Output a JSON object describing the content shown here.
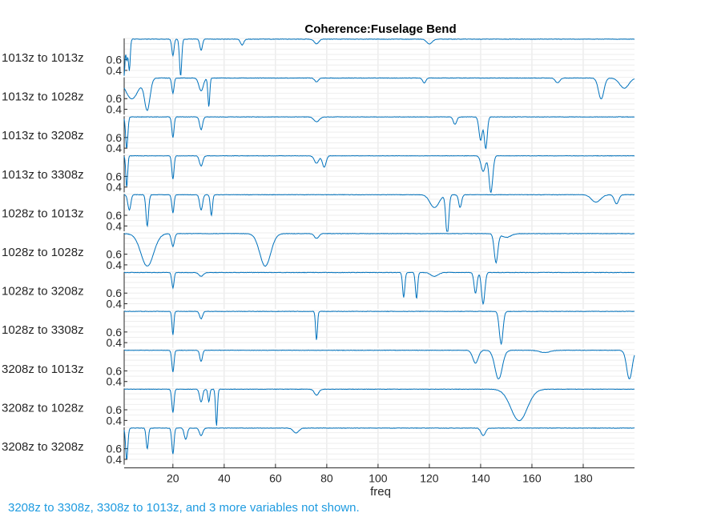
{
  "chart_data": {
    "type": "line",
    "title": "Coherence:Fuselage Bend",
    "xlabel": "freq",
    "xlim": [
      1,
      200
    ],
    "xticks": [
      20,
      40,
      60,
      80,
      100,
      120,
      140,
      160,
      180
    ],
    "ylim": [
      0.3,
      1.0
    ],
    "yticks": [
      0.4,
      0.6
    ],
    "grid": true,
    "series_color": "#0072BD",
    "baseline": 0.99,
    "panels": [
      {
        "name": "1013z to 1013z",
        "dips": [
          [
            1,
            0.3,
            0.4
          ],
          [
            2,
            0.6,
            0.5
          ],
          [
            3,
            0.4,
            0.5
          ],
          [
            20,
            0.68,
            0.6
          ],
          [
            23,
            0.3,
            0.6
          ],
          [
            31,
            0.78,
            0.7
          ],
          [
            47,
            0.88,
            0.9
          ],
          [
            76,
            0.9,
            1.2
          ],
          [
            120,
            0.9,
            1.5
          ]
        ]
      },
      {
        "name": "1013z to 1028z",
        "dips": [
          [
            4,
            0.6,
            3.5
          ],
          [
            10,
            0.4,
            1.5
          ],
          [
            20,
            0.7,
            0.6
          ],
          [
            31,
            0.75,
            1.2
          ],
          [
            34,
            0.45,
            0.5
          ],
          [
            76,
            0.92,
            1.0
          ],
          [
            118,
            0.9,
            0.9
          ],
          [
            170,
            0.9,
            1.2
          ],
          [
            187,
            0.6,
            1.5
          ],
          [
            196,
            0.8,
            2.5
          ]
        ]
      },
      {
        "name": "1013z to 3208z",
        "dips": [
          [
            2,
            0.4,
            0.6
          ],
          [
            20,
            0.6,
            0.6
          ],
          [
            31,
            0.75,
            0.8
          ],
          [
            76,
            0.9,
            1.5
          ],
          [
            130,
            0.85,
            0.9
          ],
          [
            140,
            0.55,
            0.9
          ],
          [
            142,
            0.4,
            0.8
          ]
        ]
      },
      {
        "name": "1013z to 3308z",
        "dips": [
          [
            2,
            0.4,
            0.5
          ],
          [
            20,
            0.55,
            0.6
          ],
          [
            31,
            0.8,
            0.9
          ],
          [
            76,
            0.85,
            1.2
          ],
          [
            79,
            0.78,
            1.0
          ],
          [
            141,
            0.7,
            1.2
          ],
          [
            144,
            0.3,
            1.0
          ]
        ]
      },
      {
        "name": "1028z to 1013z",
        "dips": [
          [
            3,
            0.7,
            0.8
          ],
          [
            10,
            0.4,
            0.7
          ],
          [
            20,
            0.65,
            0.6
          ],
          [
            31,
            0.7,
            0.8
          ],
          [
            35,
            0.6,
            0.6
          ],
          [
            122,
            0.75,
            2.5
          ],
          [
            127,
            0.2,
            0.8
          ],
          [
            132,
            0.75,
            0.8
          ],
          [
            185,
            0.85,
            2.5
          ],
          [
            193,
            0.82,
            1.2
          ]
        ]
      },
      {
        "name": "1028z to 1028z",
        "dips": [
          [
            10,
            0.38,
            3.5
          ],
          [
            20,
            0.75,
            0.8
          ],
          [
            56,
            0.38,
            3.0
          ],
          [
            76,
            0.9,
            1.2
          ],
          [
            146,
            0.45,
            1.0
          ],
          [
            150,
            0.92,
            2.5
          ]
        ]
      },
      {
        "name": "1028z to 3208z",
        "dips": [
          [
            20,
            0.7,
            0.6
          ],
          [
            31,
            0.92,
            1.2
          ],
          [
            110,
            0.52,
            0.6
          ],
          [
            115,
            0.5,
            0.6
          ],
          [
            122,
            0.92,
            2.0
          ],
          [
            138,
            0.6,
            0.8
          ],
          [
            141,
            0.4,
            0.9
          ]
        ]
      },
      {
        "name": "1028z to 3308z",
        "dips": [
          [
            20,
            0.55,
            0.5
          ],
          [
            31,
            0.85,
            0.8
          ],
          [
            76,
            0.45,
            0.5
          ],
          [
            148,
            0.38,
            1.0
          ]
        ]
      },
      {
        "name": "3208z to 1013z",
        "dips": [
          [
            20,
            0.58,
            0.6
          ],
          [
            31,
            0.78,
            0.7
          ],
          [
            138,
            0.75,
            1.5
          ],
          [
            147,
            0.45,
            2.0
          ],
          [
            165,
            0.95,
            3.0
          ],
          [
            198,
            0.45,
            1.5
          ]
        ]
      },
      {
        "name": "3208z to 1028z",
        "dips": [
          [
            20,
            0.55,
            0.6
          ],
          [
            31,
            0.75,
            0.8
          ],
          [
            34,
            0.75,
            0.5
          ],
          [
            37,
            0.3,
            0.5
          ],
          [
            76,
            0.88,
            1.2
          ],
          [
            155,
            0.4,
            4.5
          ]
        ]
      },
      {
        "name": "3208z to 3208z",
        "dips": [
          [
            2,
            0.4,
            0.6
          ],
          [
            10,
            0.6,
            0.6
          ],
          [
            20,
            0.5,
            0.6
          ],
          [
            25,
            0.78,
            0.8
          ],
          [
            31,
            0.85,
            0.9
          ],
          [
            68,
            0.9,
            1.5
          ],
          [
            141,
            0.85,
            1.2
          ]
        ]
      }
    ],
    "note": "3208z to 3308z, 3308z to 1013z, and 3 more variables not shown.",
    "note_color": "#1E9BE0"
  }
}
